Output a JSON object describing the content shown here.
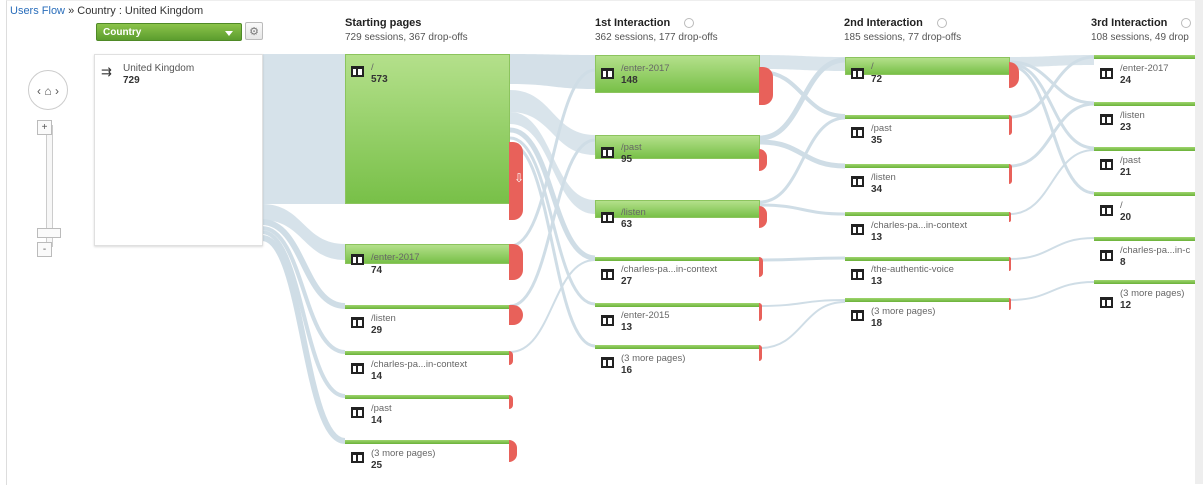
{
  "breadcrumb": {
    "root": "Users Flow",
    "sep": " » ",
    "current": "Country : United Kingdom"
  },
  "dimension_select": {
    "label": "Country"
  },
  "icons": {
    "home": "home-icon",
    "gear": "gear-icon",
    "zoom_in": "+",
    "zoom_out": "-"
  },
  "country": {
    "name": "United Kingdom",
    "value": "729"
  },
  "columns": [
    {
      "title": "Starting pages",
      "subtitle": "729 sessions, 367 drop-offs"
    },
    {
      "title": "1st Interaction",
      "subtitle": "362 sessions, 177 drop-offs"
    },
    {
      "title": "2nd Interaction",
      "subtitle": "185 sessions, 77 drop-offs"
    },
    {
      "title": "3rd Interaction",
      "subtitle": "108 sessions, 49 drop"
    }
  ],
  "starting_pages": [
    {
      "label": "/",
      "value": "573"
    },
    {
      "label": "/enter-2017",
      "value": "74"
    },
    {
      "label": "/listen",
      "value": "29"
    },
    {
      "label": "/charles-pa...in-context",
      "value": "14"
    },
    {
      "label": "/past",
      "value": "14"
    },
    {
      "label": "(3 more pages)",
      "value": "25"
    }
  ],
  "first_interaction": [
    {
      "label": "/enter-2017",
      "value": "148"
    },
    {
      "label": "/past",
      "value": "95"
    },
    {
      "label": "/listen",
      "value": "63"
    },
    {
      "label": "/charles-pa...in-context",
      "value": "27"
    },
    {
      "label": "/enter-2015",
      "value": "13"
    },
    {
      "label": "(3 more pages)",
      "value": "16"
    }
  ],
  "second_interaction": [
    {
      "label": "/",
      "value": "72"
    },
    {
      "label": "/past",
      "value": "35"
    },
    {
      "label": "/listen",
      "value": "34"
    },
    {
      "label": "/charles-pa...in-context",
      "value": "13"
    },
    {
      "label": "/the-authentic-voice",
      "value": "13"
    },
    {
      "label": "(3 more pages)",
      "value": "18"
    }
  ],
  "third_interaction": [
    {
      "label": "/enter-2017",
      "value": "24"
    },
    {
      "label": "/listen",
      "value": "23"
    },
    {
      "label": "/past",
      "value": "21"
    },
    {
      "label": "/",
      "value": "20"
    },
    {
      "label": "/charles-pa...in-c",
      "value": "8"
    },
    {
      "label": "(3 more pages)",
      "value": "12"
    }
  ],
  "colors": {
    "node_green": "#78c048",
    "drop_red": "#e8615a",
    "flow": "#cfdde6",
    "link": "#2a6ebb"
  }
}
